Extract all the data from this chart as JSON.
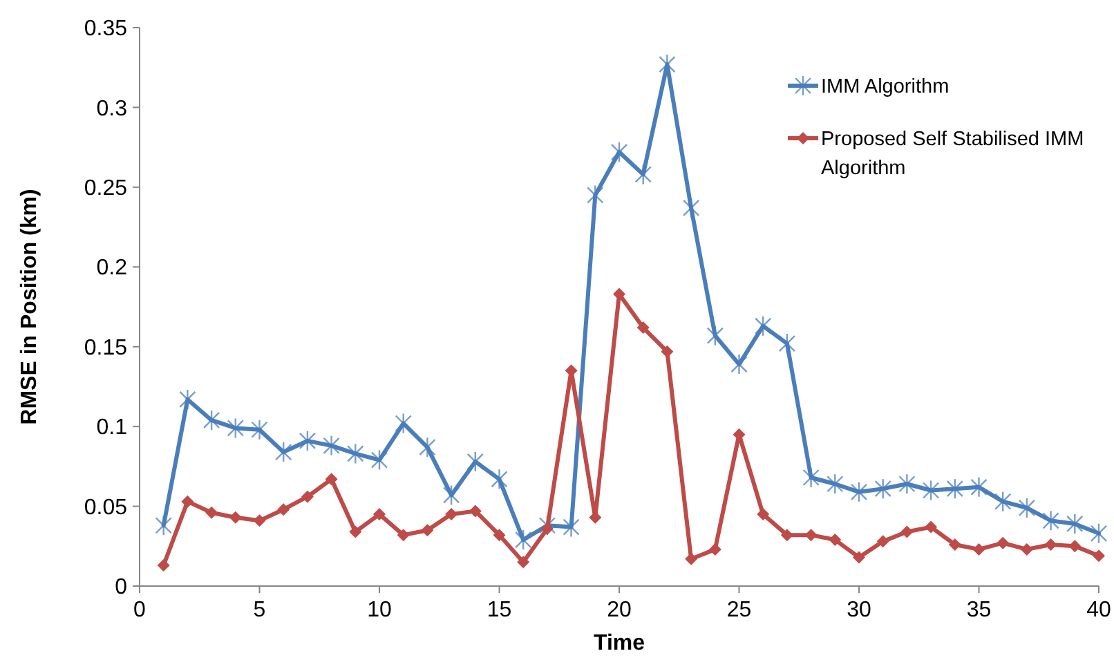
{
  "chart_data": {
    "type": "line",
    "xlabel": "Time",
    "ylabel": "RMSE in Position (km)",
    "x": [
      1,
      2,
      3,
      4,
      5,
      6,
      7,
      8,
      9,
      10,
      11,
      12,
      13,
      14,
      15,
      16,
      17,
      18,
      19,
      20,
      21,
      22,
      23,
      24,
      25,
      26,
      27,
      28,
      29,
      30,
      31,
      32,
      33,
      34,
      35,
      36,
      37,
      38,
      39,
      40
    ],
    "series": [
      {
        "name": "IMM Algorithm",
        "color": "#4a7ebb",
        "marker": "cross",
        "values": [
          0.038,
          0.117,
          0.104,
          0.099,
          0.098,
          0.084,
          0.091,
          0.088,
          0.083,
          0.079,
          0.102,
          0.087,
          0.057,
          0.078,
          0.067,
          0.029,
          0.038,
          0.037,
          0.245,
          0.272,
          0.258,
          0.327,
          0.237,
          0.157,
          0.139,
          0.163,
          0.152,
          0.068,
          0.064,
          0.059,
          0.061,
          0.064,
          0.06,
          0.061,
          0.062,
          0.053,
          0.049,
          0.041,
          0.039,
          0.033
        ]
      },
      {
        "name": "Proposed Self Stabilised IMM Algorithm",
        "color": "#be4b48",
        "marker": "diamond",
        "values": [
          0.013,
          0.053,
          0.046,
          0.043,
          0.041,
          0.048,
          0.056,
          0.067,
          0.034,
          0.045,
          0.032,
          0.035,
          0.045,
          0.047,
          0.032,
          0.015,
          0.036,
          0.135,
          0.043,
          0.183,
          0.162,
          0.147,
          0.017,
          0.023,
          0.095,
          0.045,
          0.032,
          0.032,
          0.029,
          0.018,
          0.028,
          0.034,
          0.037,
          0.026,
          0.023,
          0.027,
          0.023,
          0.026,
          0.025,
          0.019
        ]
      }
    ],
    "xlim": [
      0,
      40
    ],
    "xticks": [
      0,
      5,
      10,
      15,
      20,
      25,
      30,
      35,
      40
    ],
    "ylim": [
      0,
      0.35
    ],
    "yticks": [
      0,
      0.05,
      0.1,
      0.15,
      0.2,
      0.25,
      0.3,
      0.35
    ],
    "grid": false,
    "legend": "top right",
    "line_style": "solid"
  }
}
